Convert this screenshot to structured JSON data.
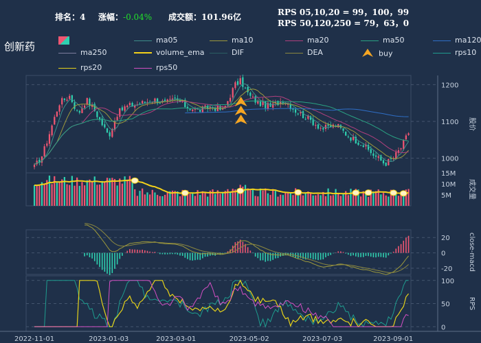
{
  "header": {
    "rank_label": "排名：",
    "rank_value": "4",
    "change_label": "涨幅：",
    "change_value": "-0.04%",
    "turnover_label": "成交额：",
    "turnover_value": "101.96亿",
    "rps_line1": "RPS 05,10,20 = 99，100，99",
    "rps_line2": "RPS 50,120,250 = 79，63，0"
  },
  "title": "创新药",
  "colors": {
    "background": "#1f3049",
    "up": "#f05672",
    "down": "#2fd0b0",
    "change": "#22e02a",
    "ma05": "#3d8f8b",
    "ma10": "#9e9a3c",
    "ma20": "#b0407e",
    "ma50": "#2aa383",
    "ma120": "#2f6fc8",
    "ma250": "#7f7f9f",
    "volume_ema": "#f5d21a",
    "DIF": "#2a5e64",
    "DEA": "#8c8840",
    "buy": "#f5a623",
    "rps10": "#1f9d8f",
    "rps20": "#e6d21a",
    "rps50": "#d44fc4"
  },
  "legend": [
    {
      "name": "",
      "type": "candle"
    },
    {
      "name": "ma05",
      "type": "line",
      "color": "#3d8f8b"
    },
    {
      "name": "ma10",
      "type": "line",
      "color": "#9e9a3c"
    },
    {
      "name": "ma20",
      "type": "line",
      "color": "#b0407e"
    },
    {
      "name": "ma50",
      "type": "line",
      "color": "#2aa383"
    },
    {
      "name": "ma120",
      "type": "line",
      "color": "#2f6fc8"
    },
    {
      "name": "ma250",
      "type": "line",
      "color": "#7f7f9f"
    },
    {
      "name": "volume_ema",
      "type": "thick",
      "color": "#f5d21a"
    },
    {
      "name": "DIF",
      "type": "line",
      "color": "#2a5e64"
    },
    {
      "name": "DEA",
      "type": "line",
      "color": "#8c8840"
    },
    {
      "name": "buy",
      "type": "marker",
      "color": "#f5a623"
    },
    {
      "name": "rps10",
      "type": "line",
      "color": "#1f9d8f"
    },
    {
      "name": "rps20",
      "type": "line",
      "color": "#e6d21a"
    },
    {
      "name": "rps50",
      "type": "line",
      "color": "#d44fc4"
    }
  ],
  "chart_data": [
    {
      "type": "candlestick",
      "ylabel": "股价",
      "ylim": [
        960,
        1225
      ],
      "yticks": [
        1000,
        1100,
        1200
      ],
      "x": [
        "2022-11-01",
        "2023-01-03",
        "2023-03-01",
        "2023-05-02",
        "2023-07-03",
        "2023-09-01"
      ],
      "close_path": [
        [
          "2022-11-01",
          975
        ],
        [
          "2022-11-08",
          1010
        ],
        [
          "2022-11-15",
          1080
        ],
        [
          "2022-11-22",
          1150
        ],
        [
          "2022-12-01",
          1170
        ],
        [
          "2022-12-08",
          1120
        ],
        [
          "2022-12-15",
          1160
        ],
        [
          "2022-12-22",
          1130
        ],
        [
          "2023-01-03",
          1060
        ],
        [
          "2023-01-10",
          1120
        ],
        [
          "2023-01-17",
          1140
        ],
        [
          "2023-01-31",
          1150
        ],
        [
          "2023-02-10",
          1160
        ],
        [
          "2023-02-20",
          1150
        ],
        [
          "2023-03-01",
          1160
        ],
        [
          "2023-03-10",
          1140
        ],
        [
          "2023-03-20",
          1130
        ],
        [
          "2023-03-31",
          1140
        ],
        [
          "2023-04-10",
          1130
        ],
        [
          "2023-04-20",
          1200
        ],
        [
          "2023-04-25",
          1210
        ],
        [
          "2023-05-02",
          1170
        ],
        [
          "2023-05-10",
          1150
        ],
        [
          "2023-05-20",
          1140
        ],
        [
          "2023-05-31",
          1160
        ],
        [
          "2023-06-10",
          1130
        ],
        [
          "2023-06-20",
          1110
        ],
        [
          "2023-07-03",
          1080
        ],
        [
          "2023-07-15",
          1090
        ],
        [
          "2023-07-25",
          1060
        ],
        [
          "2023-08-05",
          1040
        ],
        [
          "2023-08-15",
          1010
        ],
        [
          "2023-08-25",
          985
        ],
        [
          "2023-09-01",
          1000
        ],
        [
          "2023-09-08",
          1030
        ],
        [
          "2023-09-14",
          1070
        ]
      ],
      "buy_markers": [
        "2023-04-25"
      ]
    },
    {
      "type": "bar",
      "ylabel": "成交量",
      "yticks": [
        "5M",
        "10M",
        "15M"
      ],
      "ylim": [
        0,
        15
      ]
    },
    {
      "type": "bar+line",
      "ylabel": "close-macd",
      "yticks": [
        20,
        0,
        -20
      ],
      "ylim": [
        -28,
        30
      ]
    },
    {
      "type": "line",
      "ylabel": "RPS",
      "yticks": [
        0,
        50,
        100
      ],
      "ylim": [
        -10,
        110
      ]
    }
  ]
}
